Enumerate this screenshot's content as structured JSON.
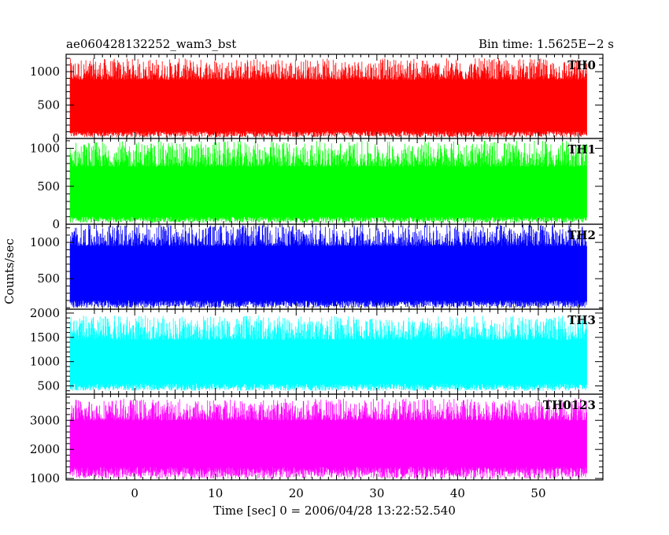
{
  "header": {
    "title": "ae060428132252_wam3_bst",
    "bin_time": "Bin time: 1.5625E−2 s"
  },
  "chart_data": {
    "type": "line",
    "title": "ae060428132252_wam3_bst",
    "xlabel": "Time [sec] 0 = 2006/04/28 13:22:52.540",
    "ylabel": "Counts/sec",
    "xlim": [
      -8.5,
      58
    ],
    "data_range": [
      -8,
      56
    ],
    "xticks": [
      0,
      10,
      20,
      30,
      40,
      50
    ],
    "xtick_labels": [
      "0",
      "10",
      "20",
      "30",
      "40",
      "50"
    ],
    "grid": false,
    "panels": [
      {
        "name": "TH0",
        "color": "#ff0000",
        "ylim": [
          0,
          1260
        ],
        "yticks": [
          0,
          500,
          1000
        ],
        "ytick_labels": [
          "0",
          "500",
          "1000"
        ],
        "low_band": [
          20,
          110
        ],
        "high_band": [
          880,
          1200
        ]
      },
      {
        "name": "TH1",
        "color": "#00ff00",
        "ylim": [
          0,
          1130
        ],
        "yticks": [
          0,
          500,
          1000
        ],
        "ytick_labels": [
          "0",
          "500",
          "1000"
        ],
        "low_band": [
          20,
          100
        ],
        "high_band": [
          760,
          1100
        ]
      },
      {
        "name": "TH2",
        "color": "#0000ff",
        "ylim": [
          80,
          1250
        ],
        "yticks": [
          500,
          1000
        ],
        "ytick_labels": [
          "500",
          "1000"
        ],
        "low_band": [
          100,
          200
        ],
        "high_band": [
          950,
          1250
        ]
      },
      {
        "name": "TH3",
        "color": "#00ffff",
        "ylim": [
          330,
          2080
        ],
        "yticks": [
          500,
          1000,
          1500,
          2000
        ],
        "ytick_labels": [
          "500",
          "1000",
          "1500",
          "2000"
        ],
        "low_band": [
          400,
          550
        ],
        "high_band": [
          1450,
          1950
        ]
      },
      {
        "name": "TH0123",
        "color": "#ff00ff",
        "ylim": [
          950,
          3900
        ],
        "yticks": [
          1000,
          2000,
          3000
        ],
        "ytick_labels": [
          "1000",
          "2000",
          "3000"
        ],
        "low_band": [
          1000,
          1400
        ],
        "high_band": [
          3000,
          3750
        ]
      }
    ]
  }
}
